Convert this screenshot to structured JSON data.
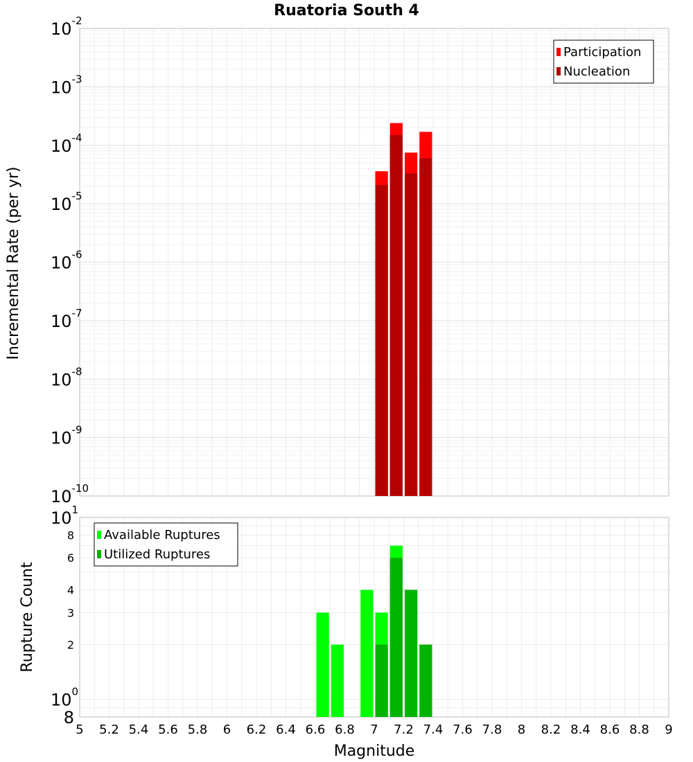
{
  "chart_data": [
    {
      "type": "bar",
      "title": "Ruatoria South 4",
      "xlabel": "Magnitude",
      "ylabel": "Incremental Rate (per yr)",
      "yscale": "log",
      "ylim": [
        1e-10,
        0.01
      ],
      "xlim": [
        5,
        9
      ],
      "bin_width": 0.1,
      "y_tick_exponents": [
        "-2",
        "-3",
        "-4",
        "-5",
        "-6",
        "-7",
        "-8",
        "-9",
        "-10"
      ],
      "y_tick_base": "10",
      "legend_position": "top-right",
      "series": [
        {
          "name": "Participation",
          "color": "#ff0000",
          "x": [
            7.05,
            7.15,
            7.25,
            7.35
          ],
          "values": [
            3.6e-05,
            0.00024,
            7.5e-05,
            0.00017
          ]
        },
        {
          "name": "Nucleation",
          "color": "#b30000",
          "x": [
            7.05,
            7.15,
            7.25,
            7.35
          ],
          "values": [
            2.1e-05,
            0.00015,
            3.3e-05,
            6e-05
          ]
        }
      ]
    },
    {
      "type": "bar",
      "title": "",
      "xlabel": "Magnitude",
      "ylabel": "Rupture Count",
      "yscale": "log",
      "ylim": [
        0.8,
        10
      ],
      "xlim": [
        5,
        9
      ],
      "bin_width": 0.1,
      "x_ticks": [
        "5",
        "5.2",
        "5.4",
        "5.6",
        "5.8",
        "6",
        "6.2",
        "6.4",
        "6.6",
        "6.8",
        "7",
        "7.2",
        "7.4",
        "7.6",
        "7.8",
        "8",
        "8.2",
        "8.4",
        "8.6",
        "8.8",
        "9"
      ],
      "y_minor_ticks": [
        "8",
        "6",
        "4",
        "3",
        "2"
      ],
      "y_top_label": {
        "base": "10",
        "exp": "1"
      },
      "y_mid_label": {
        "base": "10",
        "exp": "0"
      },
      "y_bottom_label": "8",
      "legend_position": "top-left",
      "series": [
        {
          "name": "Available Ruptures",
          "color": "#00ff00",
          "x": [
            6.65,
            6.75,
            6.95,
            7.05,
            7.15,
            7.25,
            7.35
          ],
          "values": [
            3,
            2,
            4,
            3,
            7,
            4,
            2
          ]
        },
        {
          "name": "Utilized Ruptures",
          "color": "#00b300",
          "x": [
            7.05,
            7.15,
            7.25,
            7.35
          ],
          "values": [
            2,
            6,
            4,
            2
          ]
        }
      ]
    }
  ]
}
